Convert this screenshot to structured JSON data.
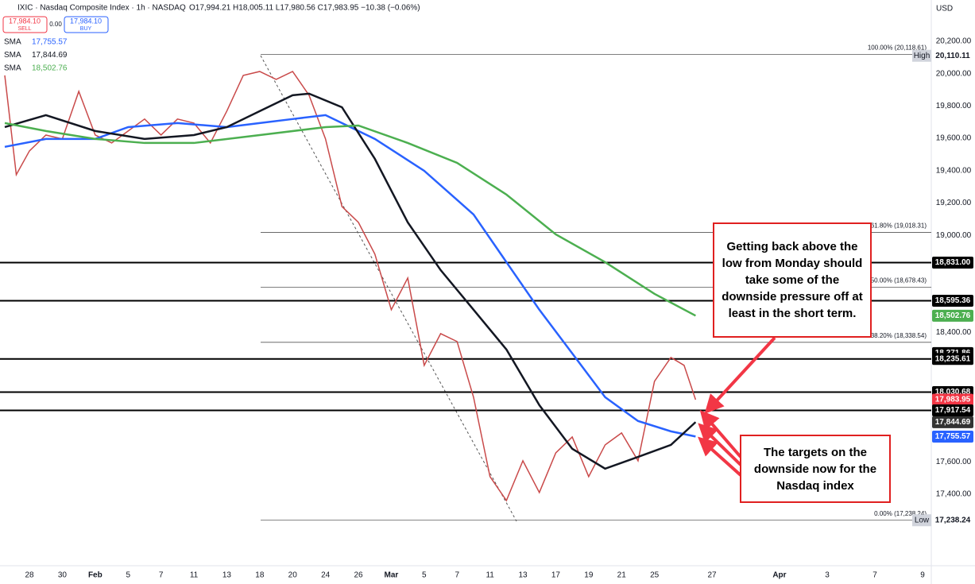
{
  "header": {
    "title": "IXIC · Nasdaq Composite Index · 1h · NASDAQ",
    "quote": "O17,994.21 H18,005.11 L17,980.56 C17,983.95 −10.38 (−0.06%)",
    "sell_price": "17,984.10",
    "sell": "SELL",
    "spread": "0.00",
    "buy_price": "17,984.10",
    "buy": "BUY",
    "currency": "USD",
    "legend": [
      {
        "name": "SMA",
        "value": "17,755.57",
        "color": "#2962ff"
      },
      {
        "name": "SMA",
        "value": "17,844.69",
        "color": "#131722"
      },
      {
        "name": "SMA",
        "value": "18,502.76",
        "color": "#4caf50"
      }
    ]
  },
  "chart_data": {
    "type": "line",
    "xlim": [
      -1.79,
      54.83
    ],
    "ylim": [
      16957,
      20455
    ],
    "grid": false,
    "xticks": [
      {
        "value": 0,
        "label": "28"
      },
      {
        "value": 2,
        "label": "30"
      },
      {
        "value": 4,
        "label": "Feb"
      },
      {
        "value": 6,
        "label": "5"
      },
      {
        "value": 8,
        "label": "7"
      },
      {
        "value": 10,
        "label": "11"
      },
      {
        "value": 12,
        "label": "13"
      },
      {
        "value": 14,
        "label": "18"
      },
      {
        "value": 16,
        "label": "20"
      },
      {
        "value": 18,
        "label": "24"
      },
      {
        "value": 20,
        "label": "26"
      },
      {
        "value": 22,
        "label": "Mar"
      },
      {
        "value": 24,
        "label": "5"
      },
      {
        "value": 26,
        "label": "7"
      },
      {
        "value": 28,
        "label": "11"
      },
      {
        "value": 30,
        "label": "13"
      },
      {
        "value": 32,
        "label": "17"
      },
      {
        "value": 34,
        "label": "19"
      },
      {
        "value": 36,
        "label": "21"
      },
      {
        "value": 38,
        "label": "25"
      },
      {
        "value": 41.5,
        "label": "27"
      },
      {
        "value": 45.6,
        "label": "Apr"
      },
      {
        "value": 48.5,
        "label": "3"
      },
      {
        "value": 51.4,
        "label": "7"
      },
      {
        "value": 54.3,
        "label": "9"
      }
    ],
    "yticks": [
      {
        "value": 20200,
        "label": "20,200.00"
      },
      {
        "value": 20000,
        "label": "20,000.00"
      },
      {
        "value": 19800,
        "label": "19,800.00"
      },
      {
        "value": 19600,
        "label": "19,600.00"
      },
      {
        "value": 19400,
        "label": "19,400.00"
      },
      {
        "value": 19200,
        "label": "19,200.00"
      },
      {
        "value": 19000,
        "label": "19,000.00"
      },
      {
        "value": 18400,
        "label": "18,400.00"
      },
      {
        "value": 17600,
        "label": "17,600.00"
      },
      {
        "value": 17400,
        "label": "17,400.00"
      }
    ],
    "series": [
      {
        "color": "#c94a4a",
        "x": [
          -1.5,
          -0.8,
          0,
          1,
          2,
          3,
          4,
          5,
          6,
          7,
          8,
          9,
          10,
          11,
          12,
          13,
          14,
          15,
          16,
          17,
          18,
          19,
          20,
          21,
          22,
          23,
          24,
          25,
          26,
          27,
          28,
          29,
          30,
          31,
          32,
          33,
          34,
          35,
          36,
          37,
          38,
          39,
          39.8,
          40.5
        ],
        "values": [
          19989,
          19375,
          19522,
          19620,
          19596,
          19890,
          19620,
          19571,
          19645,
          19719,
          19620,
          19719,
          19694,
          19571,
          19768,
          19989,
          20013,
          19964,
          20013,
          19866,
          19596,
          19178,
          19080,
          18884,
          18540,
          18736,
          18196,
          18392,
          18343,
          17999,
          17508,
          17360,
          17606,
          17410,
          17655,
          17753,
          17508,
          17704,
          17778,
          17606,
          18097,
          18245,
          18196,
          17984
        ]
      },
      {
        "color": "#2962ff",
        "x": [
          -1.5,
          1,
          4,
          6,
          9,
          12,
          14,
          16,
          18,
          21,
          24,
          27,
          29,
          31,
          33,
          35,
          37,
          39,
          40.5
        ],
        "values": [
          19547,
          19596,
          19596,
          19669,
          19694,
          19669,
          19694,
          19719,
          19743,
          19596,
          19399,
          19129,
          18834,
          18540,
          18270,
          17999,
          17852,
          17788,
          17756
        ]
      },
      {
        "color": "#131722",
        "x": [
          -1.5,
          1,
          4,
          7,
          10,
          12,
          14,
          16,
          17,
          19,
          21,
          23,
          25,
          27,
          29,
          31,
          33,
          35,
          37,
          39,
          40.5
        ],
        "values": [
          19669,
          19743,
          19645,
          19596,
          19620,
          19669,
          19768,
          19866,
          19876,
          19792,
          19473,
          19080,
          18785,
          18540,
          18294,
          17950,
          17680,
          17557,
          17630,
          17704,
          17845
        ]
      },
      {
        "color": "#4caf50",
        "x": [
          -1.5,
          1,
          4,
          7,
          10,
          14,
          18,
          20,
          23,
          26,
          29,
          32,
          35,
          38,
          40.5
        ],
        "values": [
          19694,
          19645,
          19596,
          19571,
          19571,
          19620,
          19669,
          19679,
          19571,
          19448,
          19252,
          19006,
          18834,
          18638,
          18503
        ]
      }
    ],
    "levels": [
      18831,
      18595.36,
      18235.61,
      18030.68,
      17917.54
    ],
    "fib": [
      {
        "value": 20118.61,
        "label": "100.00% (20,118.61)"
      },
      {
        "value": 19018.31,
        "label": "61.80% (19,018.31)"
      },
      {
        "value": 18678.43,
        "label": "50.00% (18,678.43)"
      },
      {
        "value": 18338.54,
        "label": "38.20% (18,338.54)"
      },
      {
        "value": 17238.24,
        "label": "0.00% (17,238.24)"
      }
    ],
    "price_labels": [
      {
        "value": 20110.11,
        "label": "20,110.11",
        "color": "#ffffff",
        "tag": "High"
      },
      {
        "value": 18831,
        "label": "18,831.00",
        "color": "#000000"
      },
      {
        "value": 18595.36,
        "label": "18,595.36",
        "color": "#000000"
      },
      {
        "value": 18502.76,
        "label": "18,502.76",
        "color": "#4caf50"
      },
      {
        "value": 18271.86,
        "label": "18,271.86",
        "color": "#000000"
      },
      {
        "value": 18235.61,
        "label": "18,235.61",
        "color": "#000000"
      },
      {
        "value": 18030.68,
        "label": "18,030.68",
        "color": "#000000"
      },
      {
        "value": 17983.95,
        "label": "17,983.95",
        "color": "#f23645"
      },
      {
        "value": 17917.54,
        "label": "17,917.54",
        "color": "#000000"
      },
      {
        "value": 17844.69,
        "label": "17,844.69",
        "color": "#333333"
      },
      {
        "value": 17755.57,
        "label": "17,755.57",
        "color": "#2962ff"
      },
      {
        "value": 17238.24,
        "label": "17,238.24",
        "color": "#ffffff",
        "tag": "Low"
      }
    ],
    "annotations": [
      "Getting back above the low from Monday should take some of the downside pressure off at least in the short term.",
      "The targets on the downside now for the Nasdaq index"
    ]
  }
}
